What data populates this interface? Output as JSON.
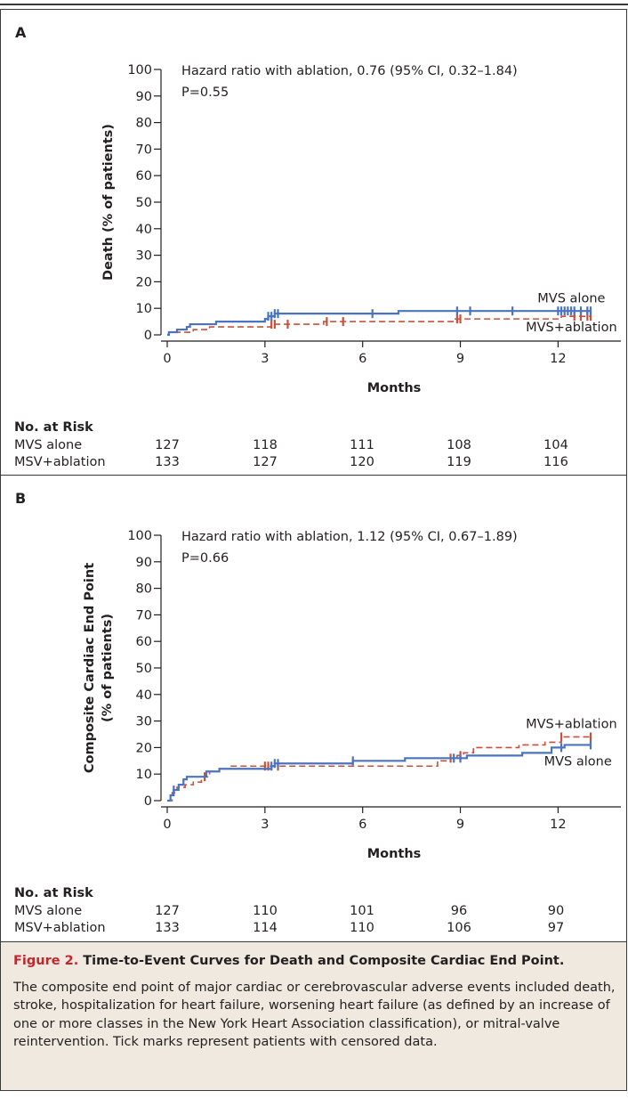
{
  "chart_data": [
    {
      "type": "line",
      "panel_label": "A",
      "title": "",
      "xlabel": "Months",
      "ylabel": "Death (% of patients)",
      "xlim": [
        0,
        13
      ],
      "ylim": [
        0,
        100
      ],
      "x_ticks": [
        "0",
        "3",
        "6",
        "9",
        "12"
      ],
      "y_ticks": [
        "0",
        "10",
        "20",
        "30",
        "40",
        "50",
        "60",
        "70",
        "80",
        "90",
        "100"
      ],
      "annotation_lines": [
        "Hazard ratio with ablation, 0.76 (95% CI, 0.32–1.84)",
        "P=0.55"
      ],
      "series": [
        {
          "name": "MVS alone",
          "color": "#4a74c0",
          "dash": "solid",
          "steps": [
            [
              0,
              0
            ],
            [
              0.05,
              1
            ],
            [
              0.3,
              2
            ],
            [
              0.6,
              3
            ],
            [
              0.7,
              4
            ],
            [
              1.5,
              5
            ],
            [
              3.0,
              6
            ],
            [
              3.1,
              7
            ],
            [
              3.3,
              8
            ],
            [
              7.1,
              9
            ],
            [
              13.0,
              9
            ]
          ],
          "censor_x": [
            3.1,
            3.2,
            3.3,
            3.4,
            6.3,
            8.9,
            9.3,
            10.6,
            12.0,
            12.1,
            12.2,
            12.3,
            12.4,
            12.5,
            12.7,
            12.9,
            13.0
          ]
        },
        {
          "name": "MVS+ablation",
          "color": "#c8503a",
          "dash": "dashed",
          "steps": [
            [
              0,
              0
            ],
            [
              0.05,
              1
            ],
            [
              0.8,
              2
            ],
            [
              1.3,
              3
            ],
            [
              3.2,
              4
            ],
            [
              4.8,
              5
            ],
            [
              8.8,
              6
            ],
            [
              12.1,
              7
            ],
            [
              13.0,
              7
            ]
          ],
          "censor_x": [
            3.2,
            3.3,
            3.7,
            4.9,
            5.4,
            8.9,
            9.0,
            12.5,
            12.7,
            12.9,
            13.0
          ]
        }
      ],
      "series_labels": [
        {
          "text": "MVS alone",
          "anchor_x": 12.3,
          "anchor_y": 14
        },
        {
          "text": "MVS+ablation",
          "anchor_x": 12.3,
          "anchor_y": 3
        }
      ],
      "risk_table": {
        "header": "No. at Risk",
        "rows": [
          {
            "label": "MVS alone",
            "values": [
              "127",
              "118",
              "111",
              "108",
              "104"
            ]
          },
          {
            "label": "MSV+ablation",
            "values": [
              "133",
              "127",
              "120",
              "119",
              "116"
            ]
          }
        ]
      }
    },
    {
      "type": "line",
      "panel_label": "B",
      "title": "",
      "xlabel": "Months",
      "ylabel": "Composite Cardiac End Point (% of patients)",
      "ylabel_lines": [
        "Composite Cardiac End Point",
        "(% of patients)"
      ],
      "xlim": [
        0,
        13
      ],
      "ylim": [
        0,
        100
      ],
      "x_ticks": [
        "0",
        "3",
        "6",
        "9",
        "12"
      ],
      "y_ticks": [
        "0",
        "10",
        "20",
        "30",
        "40",
        "50",
        "60",
        "70",
        "80",
        "90",
        "100"
      ],
      "annotation_lines": [
        "Hazard ratio with ablation, 1.12 (95% CI, 0.67–1.89)",
        "P=0.66"
      ],
      "series": [
        {
          "name": "MVS alone",
          "color": "#4a74c0",
          "dash": "solid",
          "steps": [
            [
              0,
              0
            ],
            [
              0.1,
              2
            ],
            [
              0.2,
              4
            ],
            [
              0.35,
              6
            ],
            [
              0.5,
              8
            ],
            [
              0.6,
              9
            ],
            [
              1.2,
              11
            ],
            [
              1.6,
              12
            ],
            [
              3.2,
              13
            ],
            [
              3.3,
              14
            ],
            [
              5.7,
              15
            ],
            [
              7.3,
              16
            ],
            [
              9.2,
              17
            ],
            [
              10.9,
              18
            ],
            [
              11.8,
              20
            ],
            [
              12.2,
              21
            ],
            [
              13.0,
              21
            ]
          ],
          "censor_x": [
            0.2,
            3.2,
            3.3,
            3.4,
            5.7,
            8.8,
            9.0,
            12.1,
            13.0
          ]
        },
        {
          "name": "MVS+ablation",
          "color": "#c8503a",
          "dash": "dashed",
          "steps": [
            [
              0,
              0
            ],
            [
              0.15,
              3
            ],
            [
              0.3,
              5
            ],
            [
              0.55,
              6
            ],
            [
              0.8,
              7
            ],
            [
              1.05,
              9
            ],
            [
              1.3,
              11
            ],
            [
              1.6,
              12
            ],
            [
              1.9,
              13
            ],
            [
              8.3,
              15
            ],
            [
              8.7,
              16
            ],
            [
              8.9,
              17
            ],
            [
              9.1,
              18
            ],
            [
              9.4,
              20
            ],
            [
              10.8,
              21
            ],
            [
              11.6,
              22
            ],
            [
              12.1,
              24
            ],
            [
              13.0,
              24
            ]
          ],
          "censor_x": [
            1.15,
            3.0,
            3.1,
            3.4,
            8.7,
            9.0,
            12.1,
            13.0
          ]
        }
      ],
      "series_labels": [
        {
          "text": "MVS+ablation",
          "anchor_x": 12.3,
          "anchor_y": 29
        },
        {
          "text": "MVS alone",
          "anchor_x": 12.5,
          "anchor_y": 15
        }
      ],
      "risk_table": {
        "header": "No. at Risk",
        "rows": [
          {
            "label": "MVS alone",
            "values": [
              "127",
              "110",
              "101",
              "96",
              "90"
            ]
          },
          {
            "label": "MSV+ablation",
            "values": [
              "133",
              "114",
              "110",
              "106",
              "97"
            ]
          }
        ]
      }
    }
  ],
  "figure_caption": {
    "label": "Figure 2.",
    "title": "Time-to-Event Curves for Death and Composite Cardiac End Point.",
    "body": "The composite end point of major cardiac or cerebrovascular adverse events included death, stroke, hospitalization for heart failure, worsening heart failure (as defined by an increase of one or more classes in the New York Heart Association classification), or mitral-valve reintervention. Tick marks represent patients with censored data."
  }
}
